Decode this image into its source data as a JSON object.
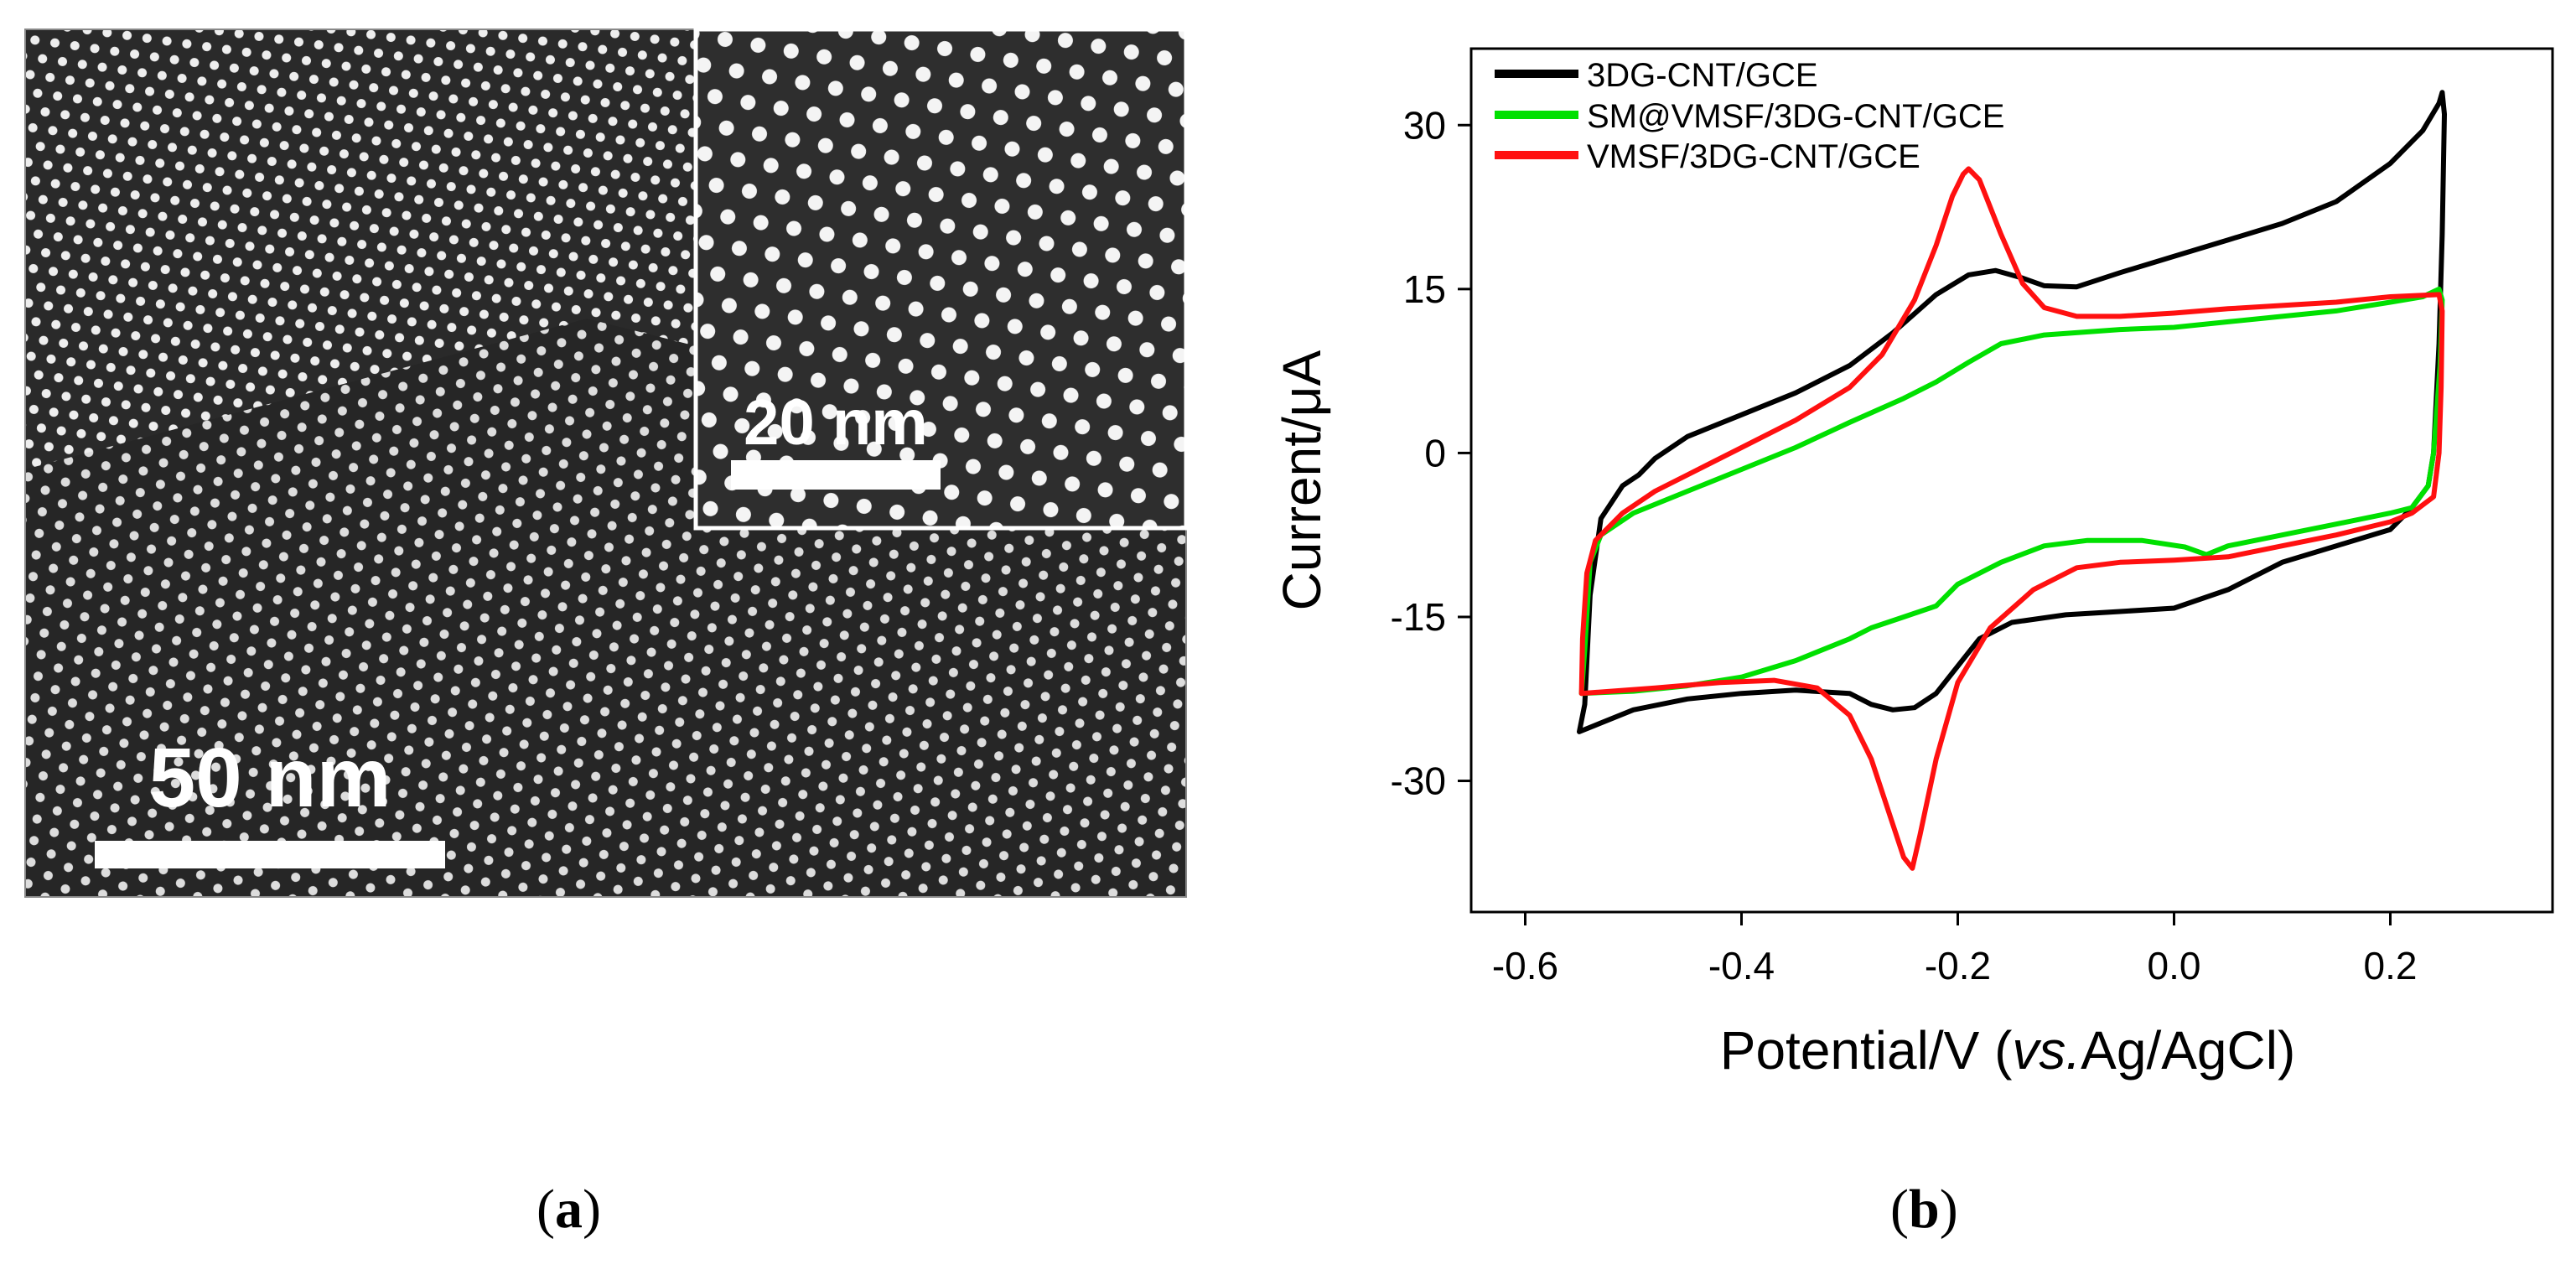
{
  "panel_a": {
    "caption_letter": "a",
    "scale_bar_main": "50 nm",
    "scale_bar_inset": "20 nm"
  },
  "panel_b": {
    "caption_letter": "b"
  },
  "chart_data": {
    "type": "line",
    "title": "",
    "xlabel_prefix": "Potential/V (",
    "xlabel_italic": "vs.",
    "xlabel_suffix": "Ag/AgCl)",
    "ylabel": "Current/μA",
    "xlim": [
      -0.65,
      0.35
    ],
    "ylim": [
      -42,
      37
    ],
    "xticks": [
      -0.6,
      -0.4,
      -0.2,
      0.0,
      0.2
    ],
    "xtick_labels": [
      "-0.6",
      "-0.4",
      "-0.2",
      "0.0",
      "0.2"
    ],
    "yticks": [
      30,
      15,
      0,
      -15,
      -30
    ],
    "ytick_labels": [
      "30",
      "15",
      "0",
      "-15",
      "-30"
    ],
    "legend_position": "top-left",
    "series": [
      {
        "name": "3DG-CNT/GCE",
        "color": "#000000",
        "points": [
          [
            -0.55,
            -25.5
          ],
          [
            -0.545,
            -23
          ],
          [
            -0.54,
            -13
          ],
          [
            -0.53,
            -6
          ],
          [
            -0.51,
            -3
          ],
          [
            -0.495,
            -2
          ],
          [
            -0.48,
            -0.5
          ],
          [
            -0.45,
            1.5
          ],
          [
            -0.4,
            3.5
          ],
          [
            -0.35,
            5.5
          ],
          [
            -0.3,
            8
          ],
          [
            -0.26,
            11
          ],
          [
            -0.22,
            14.5
          ],
          [
            -0.19,
            16.3
          ],
          [
            -0.165,
            16.7
          ],
          [
            -0.14,
            16
          ],
          [
            -0.12,
            15.3
          ],
          [
            -0.09,
            15.2
          ],
          [
            -0.05,
            16.5
          ],
          [
            0.0,
            18
          ],
          [
            0.05,
            19.5
          ],
          [
            0.1,
            21
          ],
          [
            0.15,
            23
          ],
          [
            0.2,
            26.5
          ],
          [
            0.23,
            29.5
          ],
          [
            0.245,
            32
          ],
          [
            0.248,
            33
          ],
          [
            0.25,
            31
          ],
          [
            0.248,
            20
          ],
          [
            0.245,
            10
          ],
          [
            0.24,
            0
          ],
          [
            0.235,
            -3
          ],
          [
            0.22,
            -5
          ],
          [
            0.2,
            -7
          ],
          [
            0.15,
            -8.5
          ],
          [
            0.1,
            -10
          ],
          [
            0.05,
            -12.5
          ],
          [
            0.0,
            -14.2
          ],
          [
            -0.05,
            -14.5
          ],
          [
            -0.1,
            -14.8
          ],
          [
            -0.15,
            -15.5
          ],
          [
            -0.18,
            -17
          ],
          [
            -0.2,
            -19.5
          ],
          [
            -0.22,
            -22
          ],
          [
            -0.24,
            -23.3
          ],
          [
            -0.26,
            -23.5
          ],
          [
            -0.28,
            -23
          ],
          [
            -0.3,
            -22
          ],
          [
            -0.35,
            -21.7
          ],
          [
            -0.4,
            -22
          ],
          [
            -0.45,
            -22.5
          ],
          [
            -0.5,
            -23.5
          ],
          [
            -0.55,
            -25.5
          ]
        ]
      },
      {
        "name": "SM@VMSF/3DG-CNT/GCE",
        "color": "#00e000",
        "points": [
          [
            -0.548,
            -22
          ],
          [
            -0.545,
            -18
          ],
          [
            -0.54,
            -10
          ],
          [
            -0.53,
            -7.5
          ],
          [
            -0.5,
            -5.5
          ],
          [
            -0.45,
            -3.5
          ],
          [
            -0.4,
            -1.5
          ],
          [
            -0.35,
            0.5
          ],
          [
            -0.3,
            2.8
          ],
          [
            -0.25,
            5
          ],
          [
            -0.22,
            6.5
          ],
          [
            -0.19,
            8.3
          ],
          [
            -0.16,
            10
          ],
          [
            -0.12,
            10.8
          ],
          [
            -0.05,
            11.3
          ],
          [
            0.0,
            11.5
          ],
          [
            0.05,
            12
          ],
          [
            0.1,
            12.5
          ],
          [
            0.15,
            13
          ],
          [
            0.2,
            13.8
          ],
          [
            0.23,
            14.3
          ],
          [
            0.245,
            15
          ],
          [
            0.248,
            14
          ],
          [
            0.246,
            8
          ],
          [
            0.24,
            0
          ],
          [
            0.235,
            -3
          ],
          [
            0.22,
            -5
          ],
          [
            0.2,
            -5.5
          ],
          [
            0.15,
            -6.5
          ],
          [
            0.1,
            -7.5
          ],
          [
            0.05,
            -8.5
          ],
          [
            0.03,
            -9.3
          ],
          [
            0.01,
            -8.6
          ],
          [
            -0.03,
            -8
          ],
          [
            -0.08,
            -8
          ],
          [
            -0.12,
            -8.5
          ],
          [
            -0.16,
            -10
          ],
          [
            -0.2,
            -12
          ],
          [
            -0.22,
            -14
          ],
          [
            -0.25,
            -15
          ],
          [
            -0.28,
            -16
          ],
          [
            -0.3,
            -17
          ],
          [
            -0.35,
            -19
          ],
          [
            -0.4,
            -20.5
          ],
          [
            -0.45,
            -21.3
          ],
          [
            -0.5,
            -21.8
          ],
          [
            -0.548,
            -22
          ]
        ]
      },
      {
        "name": "VMSF/3DG-CNT/GCE",
        "color": "#ff1010",
        "points": [
          [
            -0.548,
            -22
          ],
          [
            -0.547,
            -17
          ],
          [
            -0.543,
            -11
          ],
          [
            -0.535,
            -8
          ],
          [
            -0.51,
            -5.5
          ],
          [
            -0.48,
            -3.5
          ],
          [
            -0.45,
            -2
          ],
          [
            -0.4,
            0.5
          ],
          [
            -0.35,
            3
          ],
          [
            -0.3,
            6
          ],
          [
            -0.27,
            9
          ],
          [
            -0.24,
            14
          ],
          [
            -0.22,
            19
          ],
          [
            -0.205,
            23.5
          ],
          [
            -0.195,
            25.5
          ],
          [
            -0.19,
            26
          ],
          [
            -0.18,
            25
          ],
          [
            -0.16,
            20
          ],
          [
            -0.14,
            15.5
          ],
          [
            -0.12,
            13.3
          ],
          [
            -0.09,
            12.5
          ],
          [
            -0.05,
            12.5
          ],
          [
            0.0,
            12.8
          ],
          [
            0.05,
            13.2
          ],
          [
            0.1,
            13.5
          ],
          [
            0.15,
            13.8
          ],
          [
            0.2,
            14.3
          ],
          [
            0.245,
            14.5
          ],
          [
            0.248,
            13
          ],
          [
            0.247,
            6
          ],
          [
            0.245,
            0
          ],
          [
            0.24,
            -4
          ],
          [
            0.22,
            -5.5
          ],
          [
            0.2,
            -6.3
          ],
          [
            0.15,
            -7.5
          ],
          [
            0.1,
            -8.5
          ],
          [
            0.05,
            -9.5
          ],
          [
            0.0,
            -9.8
          ],
          [
            -0.05,
            -10
          ],
          [
            -0.09,
            -10.5
          ],
          [
            -0.13,
            -12.5
          ],
          [
            -0.17,
            -16
          ],
          [
            -0.2,
            -21
          ],
          [
            -0.22,
            -28
          ],
          [
            -0.235,
            -35
          ],
          [
            -0.242,
            -38
          ],
          [
            -0.25,
            -37
          ],
          [
            -0.26,
            -34
          ],
          [
            -0.28,
            -28
          ],
          [
            -0.3,
            -24
          ],
          [
            -0.33,
            -21.5
          ],
          [
            -0.37,
            -20.8
          ],
          [
            -0.42,
            -21
          ],
          [
            -0.48,
            -21.5
          ],
          [
            -0.548,
            -22
          ]
        ]
      }
    ]
  }
}
